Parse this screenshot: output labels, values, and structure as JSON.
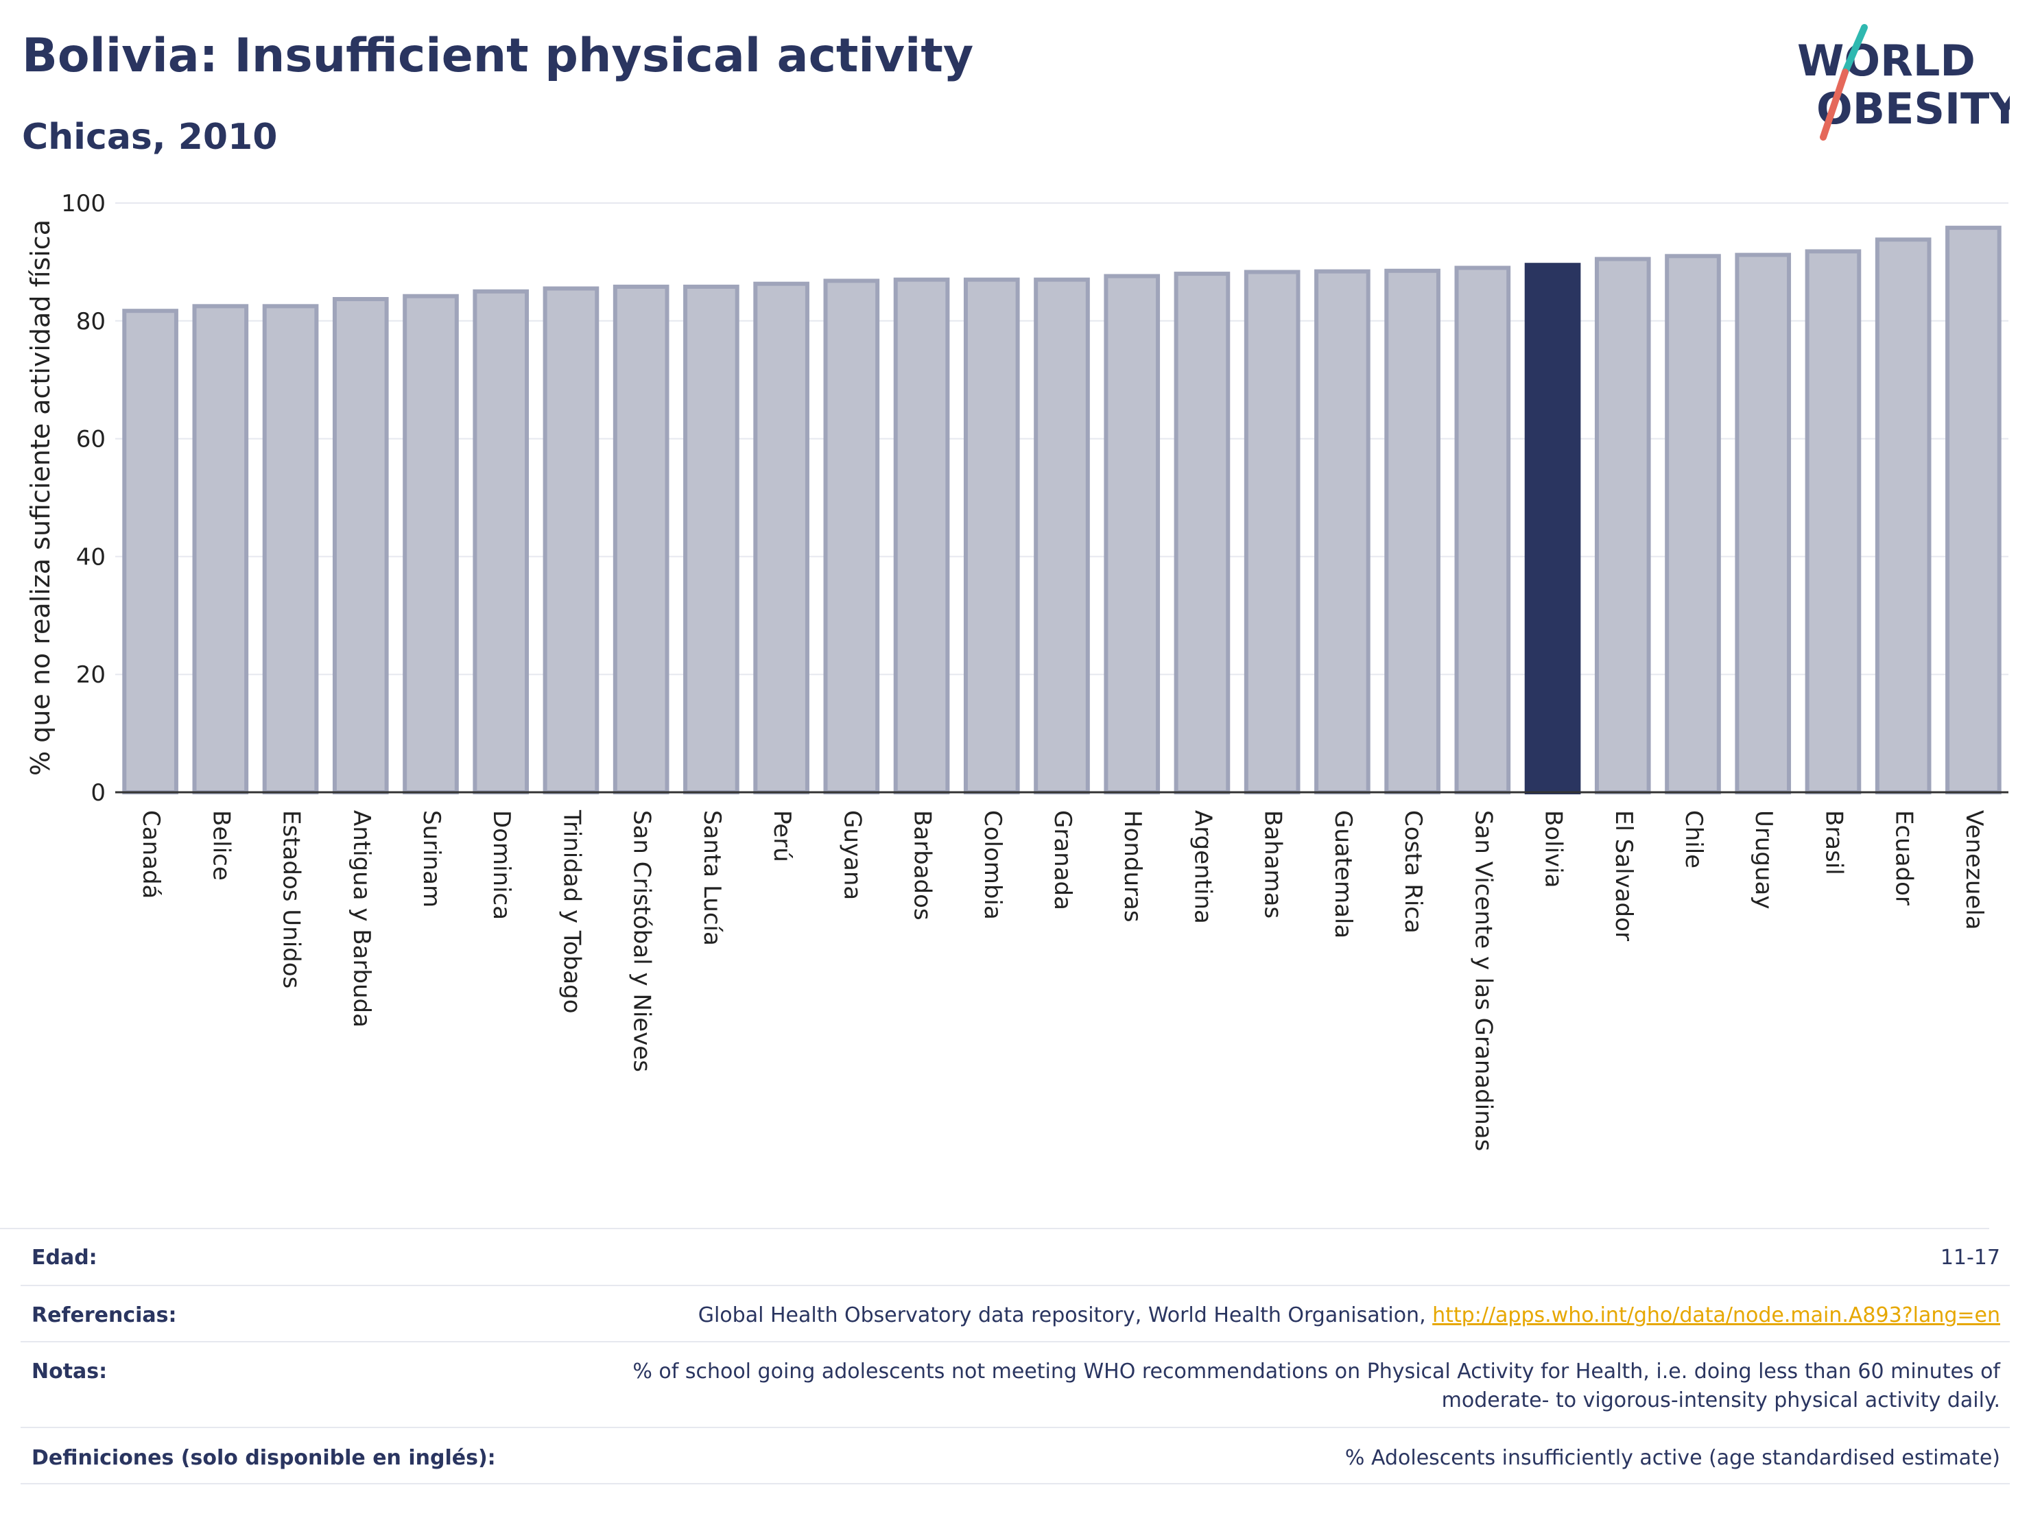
{
  "header": {
    "title": "Bolivia: Insufficient physical activity",
    "subtitle": "Chicas, 2010"
  },
  "logo": {
    "line1": "WORLD",
    "line2": "OBESITY"
  },
  "chart_data": {
    "type": "bar",
    "ylabel": "% que no realiza suficiente actividad física",
    "ylim": [
      0,
      100
    ],
    "yticks": [
      0,
      20,
      40,
      60,
      80,
      100
    ],
    "grid": true,
    "highlight": "Bolivia",
    "categories": [
      "Canadá",
      "Belice",
      "Estados Unidos",
      "Antigua y Barbuda",
      "Surinam",
      "Dominica",
      "Trinidad y Tobago",
      "San Cristóbal y Nieves",
      "Santa Lucía",
      "Perú",
      "Guyana",
      "Barbados",
      "Colombia",
      "Granada",
      "Honduras",
      "Argentina",
      "Bahamas",
      "Guatemala",
      "Costa Rica",
      "San Vicente y las Granadinas",
      "Bolivia",
      "El Salvador",
      "Chile",
      "Uruguay",
      "Brasil",
      "Ecuador",
      "Venezuela"
    ],
    "values": [
      81.7,
      82.5,
      82.5,
      83.7,
      84.2,
      85.0,
      85.5,
      85.8,
      85.8,
      86.3,
      86.8,
      87.0,
      87.0,
      87.0,
      87.6,
      88.0,
      88.3,
      88.4,
      88.5,
      89.0,
      89.5,
      90.5,
      91.0,
      91.2,
      91.8,
      93.8,
      95.8
    ],
    "colors": {
      "bar": "#bec1ce",
      "bar_edge": "#9fa4ba",
      "highlight": "#2a3560",
      "grid": "#e6e8ef",
      "axis": "#333333"
    }
  },
  "meta": {
    "age_label": "Edad:",
    "age_value": "11-17",
    "refs_label": "Referencias:",
    "refs_text": "Global Health Observatory data repository, World Health Organisation, ",
    "refs_link": "http://apps.who.int/gho/data/node.main.A893?lang=en",
    "notes_label": "Notas:",
    "notes_line1": "% of school going adolescents not meeting WHO recommendations on Physical Activity for Health, i.e. doing less than 60 minutes of",
    "notes_line2": "moderate- to vigorous-intensity physical activity daily.",
    "defs_label": "Definiciones (solo disponible en inglés):",
    "defs_value": "% Adolescents insufficiently active (age standardised estimate)"
  }
}
